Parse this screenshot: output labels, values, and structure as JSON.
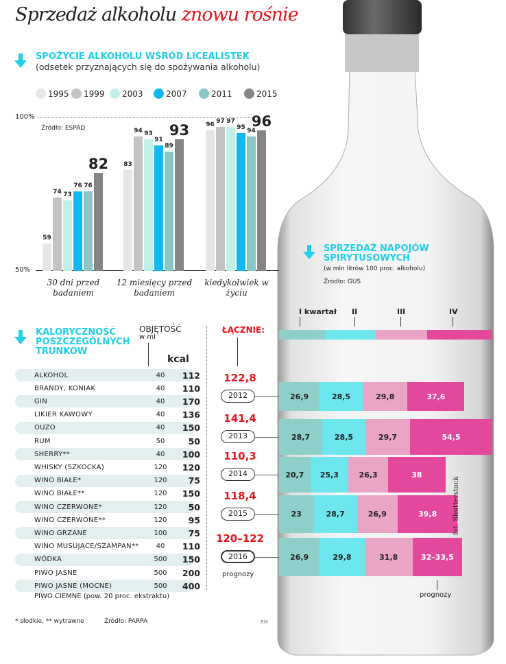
{
  "title": {
    "part1": "Sprzedaż alkoholu",
    "part2": "znowu rośnie"
  },
  "colors": {
    "accent": "#1fd0ea",
    "red": "#e8141c",
    "q1": "#8ecfca",
    "q2": "#6ee6ee",
    "q3": "#e9a4c6",
    "q4": "#e3489c"
  },
  "chart_data": [
    {
      "type": "bar",
      "title": "SPOŻYCIE ALKOHOLU WŚRÓD LICEALISTEK",
      "subtitle": "(odsetek przyznających się do spożywania alkoholu)",
      "source": "Źródło: ESPAD",
      "ylim": [
        50,
        100
      ],
      "yticks": [
        "50%",
        "100%"
      ],
      "categories": [
        "30 dni przed badaniem",
        "12 miesięcy przed badaniem",
        "kiedykolwiek w życiu"
      ],
      "series": [
        {
          "name": "1995",
          "color": "#e6e6e6",
          "values": [
            59,
            83,
            96
          ]
        },
        {
          "name": "1999",
          "color": "#c3c3c3",
          "values": [
            74,
            94,
            97
          ]
        },
        {
          "name": "2003",
          "color": "#c2f0e6",
          "values": [
            73,
            93,
            97
          ]
        },
        {
          "name": "2007",
          "color": "#12b8f2",
          "values": [
            76,
            91,
            95
          ]
        },
        {
          "name": "2011",
          "color": "#8ac6c6",
          "values": [
            76,
            89,
            94
          ]
        },
        {
          "name": "2015",
          "color": "#858585",
          "values": [
            82,
            93,
            96
          ]
        }
      ]
    },
    {
      "type": "bar",
      "stacked": true,
      "orientation": "horizontal",
      "title": "SPRZEDAŻ NAPOJÓW SPIRYTUSOWYCH",
      "subtitle": "(w mln litrów 100 proc. alkoholu)",
      "source": "Źródło: GUS",
      "legend": [
        "I kwartał",
        "II",
        "III",
        "IV"
      ],
      "totals_label": "ŁĄCZNIE:",
      "categories": [
        "2012",
        "2013",
        "2014",
        "2015",
        "2016"
      ],
      "totals": [
        "122,8",
        "141,4",
        "110,3",
        "118,4",
        "120–122"
      ],
      "values": [
        [
          26.9,
          28.5,
          29.8,
          37.6
        ],
        [
          28.7,
          28.5,
          29.7,
          54.5
        ],
        [
          20.7,
          25.3,
          26.3,
          38
        ],
        [
          23,
          28.7,
          26.9,
          39.8
        ],
        [
          26.9,
          29.8,
          31.8,
          33
        ]
      ],
      "labels": [
        [
          "26,9",
          "28,5",
          "29,8",
          "37,6"
        ],
        [
          "28,7",
          "28,5",
          "29,7",
          "54,5"
        ],
        [
          "20,7",
          "25,3",
          "26,3",
          "38"
        ],
        [
          "23",
          "28,7",
          "26,9",
          "39,8"
        ],
        [
          "26,9",
          "29,8",
          "31,8",
          "32–33,5"
        ]
      ],
      "forecast_note": "prognozy"
    }
  ],
  "calories": {
    "title": [
      "KALORYCZNOŚĆ",
      "POSZCZEGÓLNYCH",
      "TRUNKÓW"
    ],
    "vol_header": "OBJĘTOŚĆ",
    "vol_unit": "w ml",
    "kcal_header": "kcal",
    "rows": [
      [
        "ALKOHOL",
        "40",
        "112"
      ],
      [
        "BRANDY, KONIAK",
        "40",
        "110"
      ],
      [
        "GIN",
        "40",
        "170"
      ],
      [
        "LIKIER KAWOWY",
        "40",
        "136"
      ],
      [
        "OUZO",
        "40",
        "150"
      ],
      [
        "RUM",
        "50",
        "50"
      ],
      [
        "SHERRY**",
        "40",
        "100"
      ],
      [
        "WHISKY (SZKOCKA)",
        "120",
        "120"
      ],
      [
        "WINO BIAŁE*",
        "120",
        "75"
      ],
      [
        "WINO BIAŁE**",
        "120",
        "150"
      ],
      [
        "WINO CZERWONE*",
        "120",
        "50"
      ],
      [
        "WINO CZERWONE**",
        "120",
        "95"
      ],
      [
        "WINO GRZANE",
        "100",
        "75"
      ],
      [
        "WINO MUSUJĄCE/SZAMPAN**",
        "40",
        "110"
      ],
      [
        "WÓDKA",
        "500",
        "150"
      ],
      [
        "PIWO JASNE",
        "500",
        "200"
      ],
      [
        "PIWO JASNE (MOCNE)",
        "500",
        "400"
      ]
    ],
    "last_row": "PIWO CIEMNE (pow. 20 proc. ekstraktu)",
    "footnote": "* słodkie, ** wytrawne",
    "source": "Źródło: PARPA"
  },
  "credits": {
    "author": "RM",
    "photo": "fot. Shutterstock"
  }
}
